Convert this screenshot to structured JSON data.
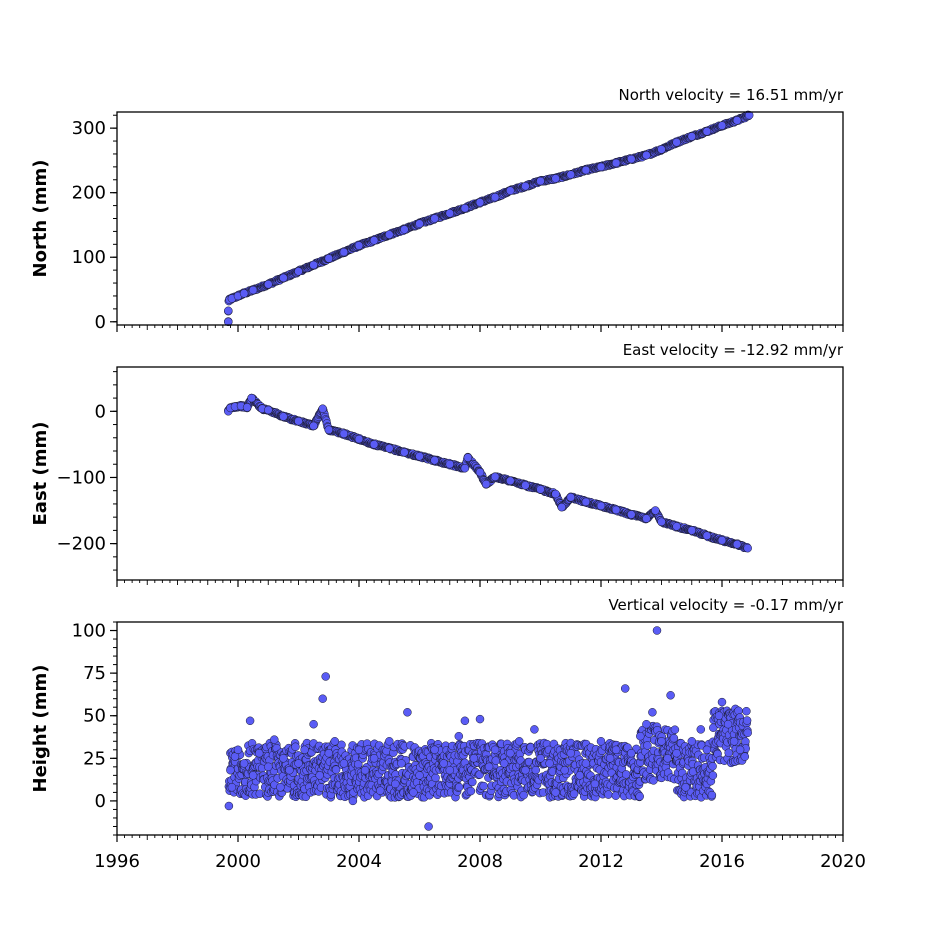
{
  "colors": {
    "marker_fill": "#5a5cf5",
    "marker_edge": "#1a1a2e",
    "axis": "#000000",
    "background": "#ffffff"
  },
  "chart_data": [
    {
      "type": "scatter",
      "title": "North velocity = 16.51 mm/yr",
      "ylabel": "North (mm)",
      "xlabel": "",
      "xlim": [
        1996,
        2020
      ],
      "ylim": [
        -5,
        325
      ],
      "yticks": [
        0,
        100,
        200,
        300
      ],
      "show_x_tick_labels": false,
      "grid": false,
      "series": [
        {
          "x": [
            1999.68,
            1999.68,
            1999.7,
            1999.72,
            1999.8,
            2000.0,
            2000.2,
            2000.5,
            2001.0,
            2001.5,
            2002.0,
            2002.5,
            2003.0,
            2003.5,
            2004.0,
            2004.5,
            2005.0,
            2005.5,
            2006.0,
            2006.5,
            2007.0,
            2007.5,
            2008.0,
            2008.5,
            2009.0,
            2009.5,
            2010.0,
            2010.5,
            2011.0,
            2011.5,
            2012.0,
            2012.5,
            2013.0,
            2013.5,
            2014.0,
            2014.5,
            2015.0,
            2015.5,
            2016.0,
            2016.5,
            2016.9
          ],
          "y": [
            0,
            17,
            32,
            34,
            36,
            40,
            44,
            49,
            58,
            68,
            78,
            88,
            98,
            108,
            118,
            126,
            135,
            143,
            152,
            160,
            168,
            176,
            185,
            193,
            203,
            210,
            218,
            222,
            228,
            235,
            240,
            246,
            252,
            258,
            267,
            278,
            287,
            295,
            304,
            312,
            320
          ]
        }
      ]
    },
    {
      "type": "scatter",
      "title": "East velocity = -12.92 mm/yr",
      "ylabel": "East (mm)",
      "xlabel": "",
      "xlim": [
        1996,
        2020
      ],
      "ylim": [
        -255,
        67
      ],
      "yticks": [
        0,
        -100,
        -200
      ],
      "show_x_tick_labels": false,
      "grid": false,
      "series": [
        {
          "x": [
            1999.68,
            1999.75,
            1999.9,
            2000.1,
            2000.3,
            2000.45,
            2000.8,
            2001.0,
            2001.5,
            2002.0,
            2002.5,
            2002.8,
            2003.0,
            2003.5,
            2004.0,
            2004.5,
            2005.0,
            2005.5,
            2006.0,
            2006.5,
            2007.0,
            2007.5,
            2007.6,
            2008.0,
            2008.2,
            2008.5,
            2009.0,
            2009.5,
            2010.0,
            2010.5,
            2010.7,
            2011.0,
            2011.5,
            2012.0,
            2012.5,
            2013.0,
            2013.5,
            2013.8,
            2014.0,
            2014.5,
            2015.0,
            2015.5,
            2016.0,
            2016.5,
            2016.85
          ],
          "y": [
            0,
            5,
            7,
            8,
            6,
            20,
            4,
            2,
            -8,
            -15,
            -22,
            4,
            -28,
            -34,
            -42,
            -50,
            -56,
            -62,
            -68,
            -74,
            -80,
            -86,
            -70,
            -92,
            -110,
            -99,
            -105,
            -112,
            -118,
            -125,
            -145,
            -130,
            -137,
            -143,
            -149,
            -156,
            -162,
            -150,
            -167,
            -174,
            -180,
            -188,
            -195,
            -201,
            -207
          ]
        }
      ]
    },
    {
      "type": "scatter",
      "title": "Vertical velocity = -0.17 mm/yr",
      "ylabel": "Height (mm)",
      "xlabel": "",
      "xlim": [
        1996,
        2020
      ],
      "ylim": [
        -20,
        105
      ],
      "yticks": [
        0,
        25,
        50,
        75,
        100
      ],
      "xticks": [
        1996,
        2000,
        2004,
        2008,
        2012,
        2016,
        2020
      ],
      "show_x_tick_labels": true,
      "grid": false,
      "series": [
        {
          "x": [
            1999.7,
            1999.75,
            1999.8,
            1999.9,
            2000.0,
            2000.2,
            2000.4,
            2000.5,
            2000.7,
            2001.0,
            2001.2,
            2001.4,
            2001.5,
            2001.7,
            2002.0,
            2002.2,
            2002.5,
            2002.7,
            2002.8,
            2002.9,
            2003.0,
            2003.2,
            2003.5,
            2003.8,
            2004.0,
            2004.2,
            2004.5,
            2004.7,
            2005.0,
            2005.2,
            2005.4,
            2005.6,
            2005.8,
            2006.0,
            2006.3,
            2006.5,
            2006.8,
            2007.0,
            2007.3,
            2007.5,
            2007.8,
            2008.0,
            2008.3,
            2008.5,
            2008.8,
            2009.0,
            2009.3,
            2009.5,
            2009.8,
            2010.0,
            2010.3,
            2010.5,
            2010.8,
            2011.0,
            2011.3,
            2011.5,
            2011.8,
            2012.0,
            2012.3,
            2012.5,
            2012.8,
            2013.0,
            2013.3,
            2013.5,
            2013.7,
            2013.85,
            2014.0,
            2014.2,
            2014.3,
            2014.5,
            2014.8,
            2015.0,
            2015.3,
            2015.5,
            2015.7,
            2015.9,
            2016.0,
            2016.2,
            2016.4,
            2016.6,
            2016.85
          ],
          "y": [
            -3,
            18,
            8,
            26,
            30,
            22,
            47,
            15,
            28,
            20,
            36,
            8,
            25,
            18,
            22,
            30,
            45,
            15,
            60,
            73,
            28,
            35,
            22,
            0,
            30,
            18,
            25,
            6,
            35,
            10,
            22,
            52,
            5,
            15,
            -15,
            30,
            22,
            18,
            38,
            47,
            25,
            48,
            20,
            30,
            22,
            28,
            35,
            18,
            42,
            25,
            22,
            5,
            18,
            28,
            15,
            22,
            10,
            35,
            25,
            30,
            66,
            28,
            38,
            45,
            52,
            100,
            35,
            25,
            62,
            28,
            8,
            35,
            42,
            30,
            15,
            50,
            58,
            45,
            35,
            30,
            40
          ]
        }
      ]
    }
  ]
}
